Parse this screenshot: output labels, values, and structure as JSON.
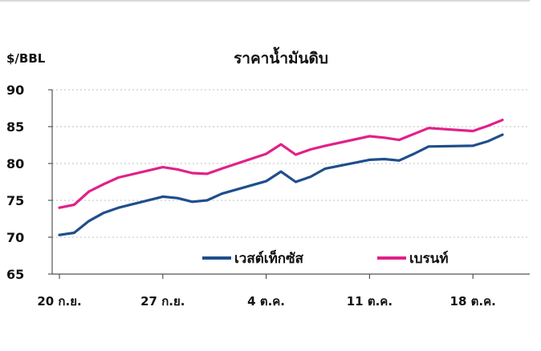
{
  "chart_data": {
    "type": "line",
    "title": "ราคาน้ำมันดิบ",
    "ylabel": "$/BBL",
    "xlabel": "",
    "ylim": [
      65,
      90
    ],
    "yticks": [
      65,
      70,
      75,
      80,
      85,
      90
    ],
    "x": [
      "20 ก.ย.",
      "21 ก.ย.",
      "22 ก.ย.",
      "23 ก.ย.",
      "24 ก.ย.",
      "25 ก.ย.",
      "26 ก.ย.",
      "27 ก.ย.",
      "28 ก.ย.",
      "29 ก.ย.",
      "30 ก.ย.",
      "1 ต.ค.",
      "2 ต.ค.",
      "3 ต.ค.",
      "4 ต.ค.",
      "5 ต.ค.",
      "6 ต.ค.",
      "7 ต.ค.",
      "8 ต.ค.",
      "9 ต.ค.",
      "10 ต.ค.",
      "11 ต.ค.",
      "12 ต.ค.",
      "13 ต.ค.",
      "14 ต.ค.",
      "15 ต.ค.",
      "16 ต.ค.",
      "17 ต.ค.",
      "18 ต.ค.",
      "19 ต.ค.",
      "20 ต.ค."
    ],
    "xtick_labels": [
      "20 ก.ย.",
      "27 ก.ย.",
      "4 ต.ค.",
      "11 ต.ค.",
      "18 ต.ค."
    ],
    "series": [
      {
        "name": "เวสต์เท็กซัส",
        "color": "#1f4e8c",
        "points": [
          [
            "20 ก.ย.",
            70.3
          ],
          [
            "21 ก.ย.",
            70.6
          ],
          [
            "22 ก.ย.",
            72.2
          ],
          [
            "23 ก.ย.",
            73.3
          ],
          [
            "24 ก.ย.",
            74.0
          ],
          [
            "27 ก.ย.",
            75.5
          ],
          [
            "28 ก.ย.",
            75.3
          ],
          [
            "29 ก.ย.",
            74.8
          ],
          [
            "30 ก.ย.",
            75.0
          ],
          [
            "1 ต.ค.",
            75.9
          ],
          [
            "4 ต.ค.",
            77.6
          ],
          [
            "5 ต.ค.",
            78.9
          ],
          [
            "6 ต.ค.",
            77.5
          ],
          [
            "7 ต.ค.",
            78.2
          ],
          [
            "8 ต.ค.",
            79.3
          ],
          [
            "11 ต.ค.",
            80.5
          ],
          [
            "12 ต.ค.",
            80.6
          ],
          [
            "13 ต.ค.",
            80.4
          ],
          [
            "14 ต.ค.",
            81.3
          ],
          [
            "15 ต.ค.",
            82.3
          ],
          [
            "18 ต.ค.",
            82.4
          ],
          [
            "19 ต.ค.",
            83.0
          ],
          [
            "20 ต.ค.",
            83.9
          ]
        ]
      },
      {
        "name": "เบรนท์",
        "color": "#e0218a",
        "points": [
          [
            "20 ก.ย.",
            74.0
          ],
          [
            "21 ก.ย.",
            74.4
          ],
          [
            "22 ก.ย.",
            76.2
          ],
          [
            "23 ก.ย.",
            77.2
          ],
          [
            "24 ก.ย.",
            78.1
          ],
          [
            "27 ก.ย.",
            79.5
          ],
          [
            "28 ก.ย.",
            79.2
          ],
          [
            "29 ก.ย.",
            78.7
          ],
          [
            "30 ก.ย.",
            78.6
          ],
          [
            "1 ต.ค.",
            79.3
          ],
          [
            "4 ต.ค.",
            81.3
          ],
          [
            "5 ต.ค.",
            82.6
          ],
          [
            "6 ต.ค.",
            81.2
          ],
          [
            "7 ต.ค.",
            81.9
          ],
          [
            "8 ต.ค.",
            82.4
          ],
          [
            "11 ต.ค.",
            83.7
          ],
          [
            "12 ต.ค.",
            83.5
          ],
          [
            "13 ต.ค.",
            83.2
          ],
          [
            "14 ต.ค.",
            84.0
          ],
          [
            "15 ต.ค.",
            84.8
          ],
          [
            "18 ต.ค.",
            84.4
          ],
          [
            "19 ต.ค.",
            85.1
          ],
          [
            "20 ต.ค.",
            85.9
          ]
        ]
      }
    ],
    "grid": "horizontal-dashed",
    "legend_position": "bottom-right"
  }
}
